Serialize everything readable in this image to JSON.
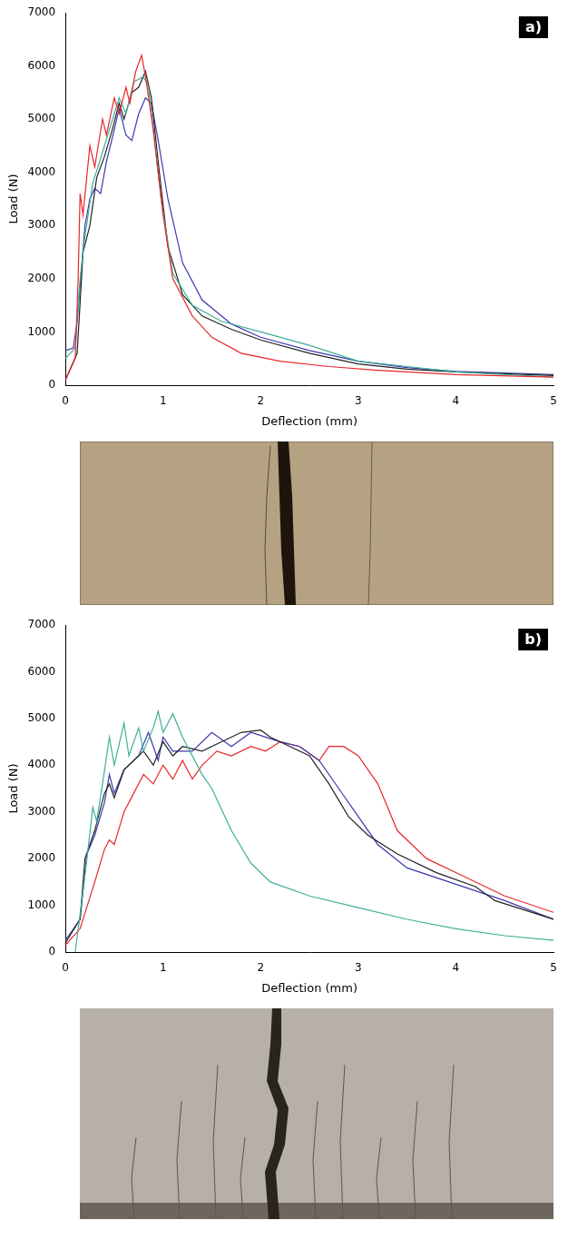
{
  "chart_data": [
    {
      "type": "line",
      "title": "a)",
      "x_label": "Deflection (mm)",
      "y_label": "Load (N)",
      "xlim": [
        0,
        5
      ],
      "xticks": [
        0,
        1,
        2,
        3,
        4,
        5
      ],
      "ylim": [
        0,
        7000
      ],
      "yticks": [
        0,
        1000,
        2000,
        3000,
        4000,
        5000,
        6000,
        7000
      ],
      "grid": false,
      "series": [
        {
          "color": "#e8262a",
          "x": [
            0,
            0.1,
            0.13,
            0.15,
            0.18,
            0.25,
            0.3,
            0.38,
            0.42,
            0.5,
            0.55,
            0.62,
            0.66,
            0.72,
            0.78,
            0.82,
            0.9,
            1.0,
            1.1,
            1.3,
            1.5,
            1.8,
            2.2,
            2.7,
            3.2,
            4,
            5
          ],
          "values": [
            100,
            500,
            2000,
            3600,
            3200,
            4500,
            4100,
            5000,
            4700,
            5400,
            5100,
            5600,
            5300,
            5900,
            6200,
            5800,
            4800,
            3200,
            2000,
            1300,
            900,
            600,
            450,
            350,
            280,
            200,
            150
          ]
        },
        {
          "color": "#3fae9a",
          "x": [
            0,
            0.05,
            0.1,
            0.15,
            0.2,
            0.28,
            0.35,
            0.45,
            0.55,
            0.62,
            0.7,
            0.8,
            0.85,
            0.9,
            0.98,
            1.1,
            1.3,
            1.6,
            2,
            2.5,
            3,
            3.5,
            4,
            5
          ],
          "values": [
            500,
            600,
            700,
            2000,
            2800,
            3800,
            4200,
            4800,
            5400,
            5100,
            5700,
            5800,
            5600,
            4800,
            3500,
            2100,
            1500,
            1200,
            1000,
            750,
            450,
            350,
            250,
            150
          ]
        },
        {
          "color": "#222222",
          "x": [
            0,
            0.12,
            0.18,
            0.25,
            0.32,
            0.4,
            0.48,
            0.55,
            0.6,
            0.68,
            0.75,
            0.82,
            0.88,
            0.95,
            1.05,
            1.2,
            1.4,
            1.7,
            2,
            2.5,
            3,
            3.5,
            4,
            5
          ],
          "values": [
            100,
            600,
            2500,
            3000,
            3900,
            4300,
            4800,
            5300,
            5000,
            5500,
            5600,
            5900,
            5400,
            4200,
            2600,
            1700,
            1300,
            1050,
            850,
            600,
            400,
            300,
            250,
            180
          ]
        },
        {
          "color": "#3a3ab0",
          "x": [
            0,
            0.08,
            0.12,
            0.2,
            0.25,
            0.3,
            0.36,
            0.42,
            0.5,
            0.55,
            0.62,
            0.68,
            0.75,
            0.82,
            0.88,
            0.95,
            1.05,
            1.2,
            1.4,
            1.7,
            2,
            2.5,
            3,
            3.5,
            4,
            5
          ],
          "values": [
            650,
            700,
            1200,
            3000,
            3500,
            3700,
            3600,
            4200,
            4800,
            5200,
            4700,
            4600,
            5100,
            5400,
            5300,
            4600,
            3500,
            2300,
            1600,
            1150,
            900,
            650,
            450,
            330,
            260,
            200
          ]
        }
      ]
    },
    {
      "type": "line",
      "title": "b)",
      "x_label": "Deflection (mm)",
      "y_label": "Load (N)",
      "xlim": [
        0,
        5
      ],
      "xticks": [
        0,
        1,
        2,
        3,
        4,
        5
      ],
      "ylim": [
        0,
        7000
      ],
      "yticks": [
        0,
        1000,
        2000,
        3000,
        4000,
        5000,
        6000,
        7000
      ],
      "grid": false,
      "series": [
        {
          "color": "#3fae9a",
          "x": [
            0.1,
            0.15,
            0.22,
            0.28,
            0.32,
            0.38,
            0.45,
            0.5,
            0.6,
            0.65,
            0.75,
            0.8,
            0.9,
            0.95,
            1,
            1.1,
            1.2,
            1.3,
            1.4,
            1.5,
            1.7,
            1.9,
            2.1,
            2.5,
            3,
            3.5,
            4,
            4.5,
            5
          ],
          "values": [
            0,
            800,
            2000,
            3100,
            2800,
            3600,
            4600,
            4000,
            4900,
            4200,
            4800,
            4300,
            4800,
            5150,
            4700,
            5100,
            4600,
            4200,
            3800,
            3500,
            2600,
            1900,
            1500,
            1200,
            950,
            700,
            500,
            350,
            250
          ]
        },
        {
          "color": "#222222",
          "x": [
            0,
            0.15,
            0.2,
            0.3,
            0.4,
            0.45,
            0.5,
            0.6,
            0.7,
            0.8,
            0.9,
            1,
            1.1,
            1.2,
            1.4,
            1.6,
            1.8,
            2,
            2.1,
            2.3,
            2.5,
            2.7,
            2.9,
            3.1,
            3.4,
            3.8,
            4.2,
            4.4,
            5
          ],
          "values": [
            200,
            700,
            2000,
            2600,
            3400,
            3600,
            3300,
            3900,
            4100,
            4300,
            4000,
            4500,
            4200,
            4400,
            4300,
            4500,
            4700,
            4750,
            4600,
            4400,
            4200,
            3600,
            2900,
            2500,
            2100,
            1700,
            1400,
            1100,
            700
          ]
        },
        {
          "color": "#3a3ab0",
          "x": [
            0,
            0.15,
            0.22,
            0.3,
            0.4,
            0.45,
            0.5,
            0.6,
            0.75,
            0.85,
            0.95,
            1,
            1.1,
            1.3,
            1.5,
            1.7,
            1.9,
            2.05,
            2.2,
            2.4,
            2.6,
            2.8,
            3,
            3.2,
            3.5,
            4,
            4.5,
            5
          ],
          "values": [
            250,
            700,
            2100,
            2500,
            3200,
            3800,
            3400,
            3900,
            4200,
            4700,
            4100,
            4600,
            4300,
            4300,
            4700,
            4400,
            4700,
            4600,
            4500,
            4400,
            4100,
            3500,
            2900,
            2300,
            1800,
            1450,
            1100,
            700
          ]
        },
        {
          "color": "#e8262a",
          "x": [
            0,
            0.15,
            0.3,
            0.4,
            0.45,
            0.5,
            0.6,
            0.7,
            0.8,
            0.9,
            1,
            1.1,
            1.2,
            1.3,
            1.4,
            1.55,
            1.7,
            1.9,
            2.05,
            2.2,
            2.4,
            2.6,
            2.7,
            2.85,
            3,
            3.2,
            3.4,
            3.7,
            4,
            4.5,
            5
          ],
          "values": [
            150,
            500,
            1500,
            2200,
            2400,
            2300,
            3000,
            3400,
            3800,
            3600,
            4000,
            3700,
            4100,
            3700,
            4000,
            4300,
            4200,
            4400,
            4300,
            4500,
            4400,
            4100,
            4400,
            4400,
            4200,
            3600,
            2600,
            2000,
            1700,
            1200,
            850
          ]
        }
      ]
    }
  ]
}
